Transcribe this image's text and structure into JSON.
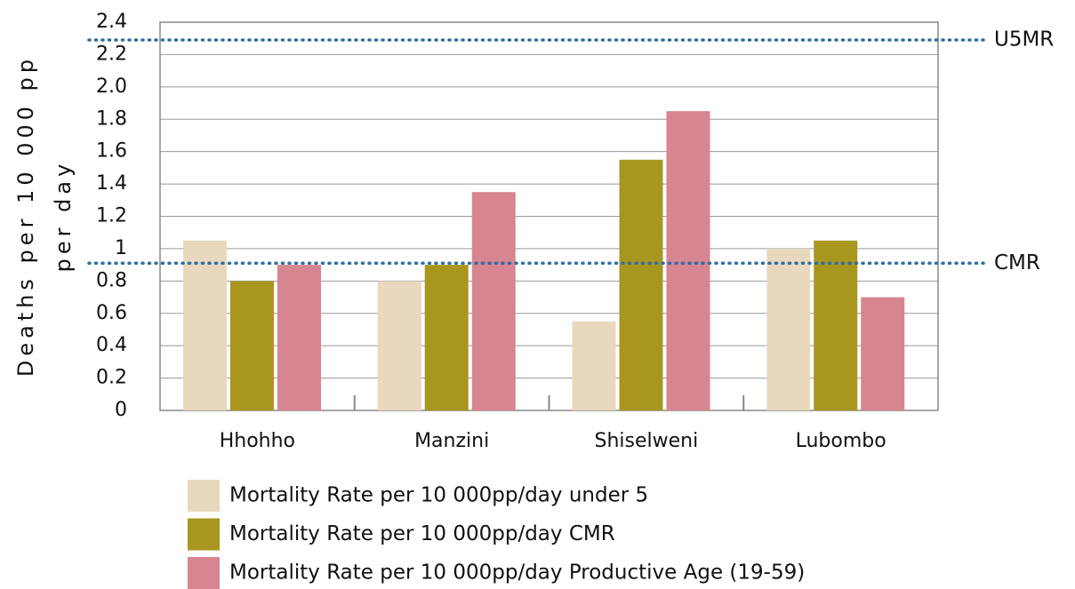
{
  "chart_data": {
    "type": "bar",
    "y_label": [
      "Deaths per 10 000 pp",
      "per day"
    ],
    "categories": [
      "Hhohho",
      "Manzini",
      "Shiselweni",
      "Lubombo"
    ],
    "series": [
      {
        "name": "Mortality Rate per 10 000pp/day under 5",
        "color": "#e8d8bd",
        "values": [
          1.05,
          0.8,
          0.55,
          1.0
        ]
      },
      {
        "name": "Mortality Rate per 10 000pp/day CMR",
        "color": "#a8961f",
        "values": [
          0.8,
          0.9,
          1.55,
          1.05
        ]
      },
      {
        "name": "Mortality Rate per 10 000pp/day Productive Age (19-59)",
        "color": "#d78590",
        "values": [
          0.9,
          1.35,
          1.85,
          0.7
        ]
      }
    ],
    "reference_lines": [
      {
        "label": "U5MR",
        "value": 2.29,
        "color": "#2e6da4"
      },
      {
        "label": "CMR",
        "value": 0.91,
        "color": "#2e6da4"
      }
    ],
    "ylim": [
      0,
      2.4
    ],
    "yticks": [
      0,
      0.2,
      0.4,
      0.6,
      0.8,
      1,
      1.2,
      1.4,
      1.6,
      1.8,
      {
        "value": 2,
        "label": "2.0"
      },
      2.2,
      2.4
    ],
    "grid": true
  }
}
